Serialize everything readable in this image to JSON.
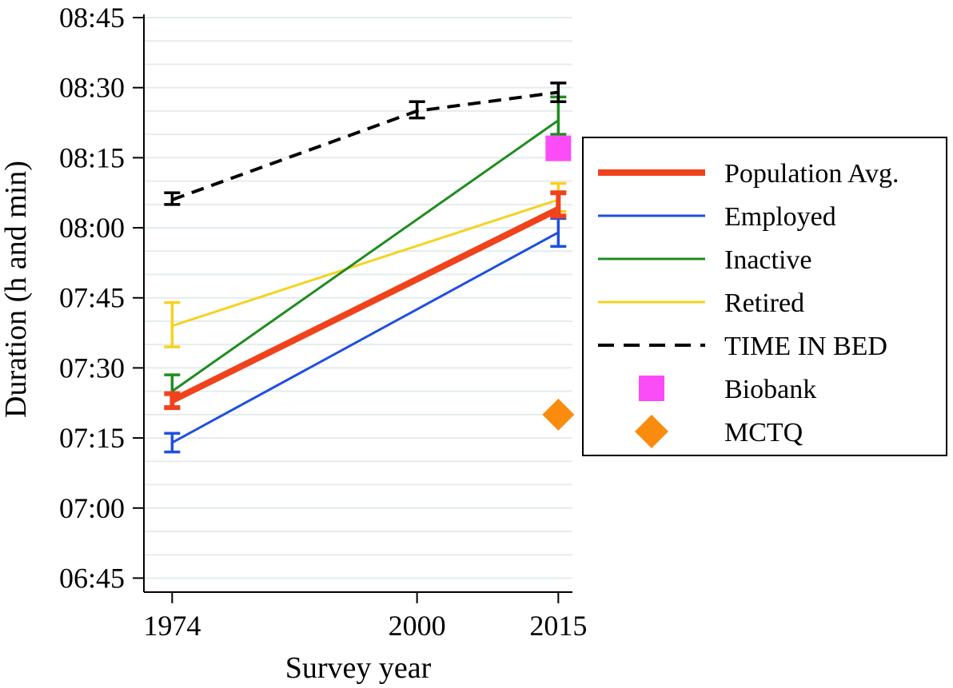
{
  "chart_data": {
    "type": "line",
    "title": "",
    "xlabel": "Survey year",
    "ylabel": "Duration (h and min)",
    "x_ticks": [
      "1974",
      "2000",
      "2015"
    ],
    "y_ticks": [
      "06:45",
      "07:00",
      "07:15",
      "07:30",
      "07:45",
      "08:00",
      "08:15",
      "08:30",
      "08:45"
    ],
    "y_tick_values": [
      405,
      420,
      435,
      450,
      465,
      480,
      495,
      510,
      525
    ],
    "xlim": [
      1971,
      2016.5
    ],
    "ylim": [
      402,
      525
    ],
    "y_units": "minutes",
    "grid": "horizontal",
    "legend_position": "right",
    "series": [
      {
        "name": "Population Avg.",
        "color": "#f0421c",
        "style": "solid-thick",
        "x": [
          1974,
          2015
        ],
        "y": [
          443,
          484
        ],
        "err": [
          [
            441.5,
            444.5
          ],
          [
            482.5,
            487.5
          ]
        ]
      },
      {
        "name": "Employed",
        "color": "#1f4fe0",
        "style": "solid",
        "x": [
          1974,
          2015
        ],
        "y": [
          434,
          479
        ],
        "err": [
          [
            432,
            436
          ],
          [
            476,
            482
          ]
        ]
      },
      {
        "name": "Inactive",
        "color": "#1f8c1f",
        "style": "solid",
        "x": [
          1974,
          2015
        ],
        "y": [
          445,
          503
        ],
        "err": [
          [
            441.5,
            448.5
          ],
          [
            500,
            508
          ]
        ]
      },
      {
        "name": "Retired",
        "color": "#f5d21f",
        "style": "solid",
        "x": [
          1974,
          2015
        ],
        "y": [
          459,
          486
        ],
        "err": [
          [
            454.5,
            464
          ],
          [
            483.5,
            489.5
          ]
        ]
      },
      {
        "name": "TIME IN BED",
        "color": "#000000",
        "style": "dashed",
        "x": [
          1974,
          2000,
          2015
        ],
        "y": [
          486,
          505,
          509
        ],
        "err": [
          [
            485,
            487.5
          ],
          [
            503.5,
            507
          ],
          [
            507,
            511
          ]
        ]
      }
    ],
    "markers": [
      {
        "name": "Biobank",
        "color": "#fb4cf7",
        "shape": "square",
        "x": 2015,
        "y": 497
      },
      {
        "name": "MCTQ",
        "color": "#f98c0f",
        "shape": "diamond",
        "x": 2015,
        "y": 440
      }
    ]
  }
}
